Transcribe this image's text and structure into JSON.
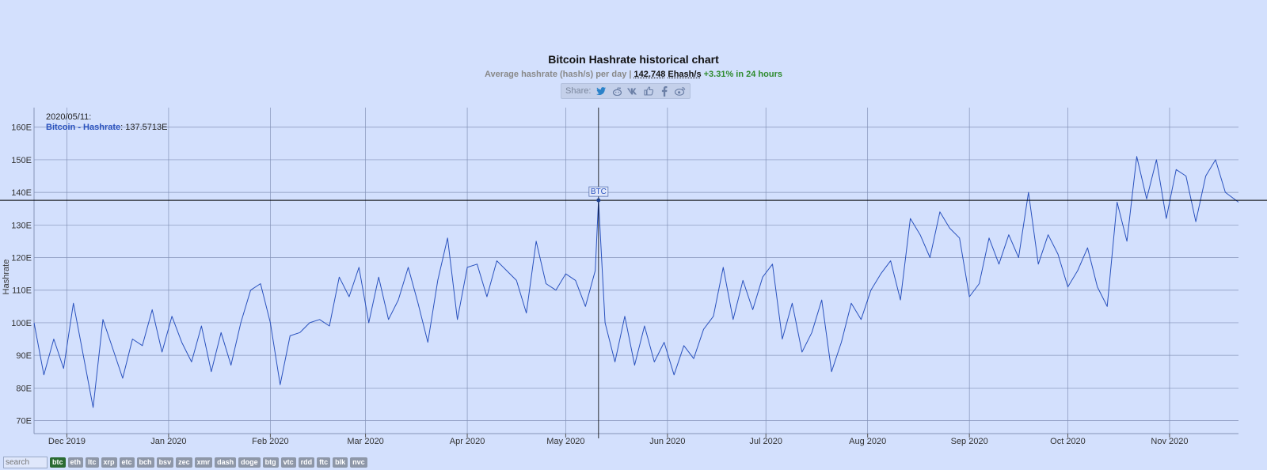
{
  "title": "Bitcoin Hashrate historical chart",
  "subtitle": {
    "prefix": "Average hashrate (hash/s) per day |",
    "value": "142.748",
    "unit": "Ehash/s",
    "change": "+3.31% in 24 hours"
  },
  "share": {
    "label": "Share:",
    "icons": [
      "twitter-icon",
      "reddit-icon",
      "vk-icon",
      "like-icon",
      "facebook-icon",
      "weibo-icon"
    ]
  },
  "tooltip": {
    "date": "2020/05/11:",
    "series": "Bitcoin - Hashrate",
    "value": ": 137.5713E"
  },
  "marker_label": "BTC",
  "search": {
    "placeholder": "search"
  },
  "coins": [
    "btc",
    "eth",
    "ltc",
    "xrp",
    "etc",
    "bch",
    "bsv",
    "zec",
    "xmr",
    "dash",
    "doge",
    "btg",
    "vtc",
    "rdd",
    "ftc",
    "blk",
    "nvc"
  ],
  "active_coin": "btc",
  "colors": {
    "background": "#d3e0fd",
    "line": "#2a52be",
    "grid": "#8493b8",
    "crosshair": "#000000"
  },
  "chart_data": {
    "type": "line",
    "title": "Bitcoin Hashrate historical chart",
    "ylabel": "Hashrate",
    "ylim": [
      66,
      166
    ],
    "yticks": [
      70,
      80,
      90,
      100,
      110,
      120,
      130,
      140,
      150,
      160
    ],
    "ytick_labels": [
      "70E",
      "80E",
      "90E",
      "100E",
      "110E",
      "120E",
      "130E",
      "140E",
      "150E",
      "160E"
    ],
    "xlim": [
      "2019-11-21",
      "2020-11-22"
    ],
    "xticks": [
      "2019-12-01",
      "2020-01-01",
      "2020-02-01",
      "2020-03-01",
      "2020-04-01",
      "2020-05-01",
      "2020-06-01",
      "2020-07-01",
      "2020-08-01",
      "2020-09-01",
      "2020-10-01",
      "2020-11-01"
    ],
    "xtick_labels": [
      "Dec 2019",
      "Jan 2020",
      "Feb 2020",
      "Mar 2020",
      "Apr 2020",
      "May 2020",
      "Jun 2020",
      "Jul 2020",
      "Aug 2020",
      "Sep 2020",
      "Oct 2020",
      "Nov 2020"
    ],
    "crosshair": {
      "x": "2020-05-11",
      "y": 137.5713
    },
    "grid": true,
    "series": [
      {
        "name": "Bitcoin - Hashrate",
        "points": [
          [
            "2019-11-21",
            100
          ],
          [
            "2019-11-24",
            84
          ],
          [
            "2019-11-27",
            95
          ],
          [
            "2019-11-30",
            86
          ],
          [
            "2019-12-03",
            106
          ],
          [
            "2019-12-06",
            90
          ],
          [
            "2019-12-09",
            74
          ],
          [
            "2019-12-12",
            101
          ],
          [
            "2019-12-15",
            92
          ],
          [
            "2019-12-18",
            83
          ],
          [
            "2019-12-21",
            95
          ],
          [
            "2019-12-24",
            93
          ],
          [
            "2019-12-27",
            104
          ],
          [
            "2019-12-30",
            91
          ],
          [
            "2020-01-02",
            102
          ],
          [
            "2020-01-05",
            94
          ],
          [
            "2020-01-08",
            88
          ],
          [
            "2020-01-11",
            99
          ],
          [
            "2020-01-14",
            85
          ],
          [
            "2020-01-17",
            97
          ],
          [
            "2020-01-20",
            87
          ],
          [
            "2020-01-23",
            100
          ],
          [
            "2020-01-26",
            110
          ],
          [
            "2020-01-29",
            112
          ],
          [
            "2020-02-01",
            100
          ],
          [
            "2020-02-04",
            81
          ],
          [
            "2020-02-07",
            96
          ],
          [
            "2020-02-10",
            97
          ],
          [
            "2020-02-13",
            100
          ],
          [
            "2020-02-16",
            101
          ],
          [
            "2020-02-19",
            99
          ],
          [
            "2020-02-22",
            114
          ],
          [
            "2020-02-25",
            108
          ],
          [
            "2020-02-28",
            117
          ],
          [
            "2020-03-02",
            100
          ],
          [
            "2020-03-05",
            114
          ],
          [
            "2020-03-08",
            101
          ],
          [
            "2020-03-11",
            107
          ],
          [
            "2020-03-14",
            117
          ],
          [
            "2020-03-17",
            106
          ],
          [
            "2020-03-20",
            94
          ],
          [
            "2020-03-23",
            113
          ],
          [
            "2020-03-26",
            126
          ],
          [
            "2020-03-29",
            101
          ],
          [
            "2020-04-01",
            117
          ],
          [
            "2020-04-04",
            118
          ],
          [
            "2020-04-07",
            108
          ],
          [
            "2020-04-10",
            119
          ],
          [
            "2020-04-13",
            116
          ],
          [
            "2020-04-16",
            113
          ],
          [
            "2020-04-19",
            103
          ],
          [
            "2020-04-22",
            125
          ],
          [
            "2020-04-25",
            112
          ],
          [
            "2020-04-28",
            110
          ],
          [
            "2020-05-01",
            115
          ],
          [
            "2020-05-04",
            113
          ],
          [
            "2020-05-07",
            105
          ],
          [
            "2020-05-10",
            116
          ],
          [
            "2020-05-11",
            137.5713
          ],
          [
            "2020-05-13",
            100
          ],
          [
            "2020-05-16",
            88
          ],
          [
            "2020-05-19",
            102
          ],
          [
            "2020-05-22",
            87
          ],
          [
            "2020-05-25",
            99
          ],
          [
            "2020-05-28",
            88
          ],
          [
            "2020-05-31",
            94
          ],
          [
            "2020-06-03",
            84
          ],
          [
            "2020-06-06",
            93
          ],
          [
            "2020-06-09",
            89
          ],
          [
            "2020-06-12",
            98
          ],
          [
            "2020-06-15",
            102
          ],
          [
            "2020-06-18",
            117
          ],
          [
            "2020-06-21",
            101
          ],
          [
            "2020-06-24",
            113
          ],
          [
            "2020-06-27",
            104
          ],
          [
            "2020-06-30",
            114
          ],
          [
            "2020-07-03",
            118
          ],
          [
            "2020-07-06",
            95
          ],
          [
            "2020-07-09",
            106
          ],
          [
            "2020-07-12",
            91
          ],
          [
            "2020-07-15",
            97
          ],
          [
            "2020-07-18",
            107
          ],
          [
            "2020-07-21",
            85
          ],
          [
            "2020-07-24",
            94
          ],
          [
            "2020-07-27",
            106
          ],
          [
            "2020-07-30",
            101
          ],
          [
            "2020-08-02",
            110
          ],
          [
            "2020-08-05",
            115
          ],
          [
            "2020-08-08",
            119
          ],
          [
            "2020-08-11",
            107
          ],
          [
            "2020-08-14",
            132
          ],
          [
            "2020-08-17",
            127
          ],
          [
            "2020-08-20",
            120
          ],
          [
            "2020-08-23",
            134
          ],
          [
            "2020-08-26",
            129
          ],
          [
            "2020-08-29",
            126
          ],
          [
            "2020-09-01",
            108
          ],
          [
            "2020-09-04",
            112
          ],
          [
            "2020-09-07",
            126
          ],
          [
            "2020-09-10",
            118
          ],
          [
            "2020-09-13",
            127
          ],
          [
            "2020-09-16",
            120
          ],
          [
            "2020-09-19",
            140
          ],
          [
            "2020-09-22",
            118
          ],
          [
            "2020-09-25",
            127
          ],
          [
            "2020-09-28",
            121
          ],
          [
            "2020-10-01",
            111
          ],
          [
            "2020-10-04",
            116
          ],
          [
            "2020-10-07",
            123
          ],
          [
            "2020-10-10",
            111
          ],
          [
            "2020-10-13",
            105
          ],
          [
            "2020-10-16",
            137
          ],
          [
            "2020-10-19",
            125
          ],
          [
            "2020-10-22",
            151
          ],
          [
            "2020-10-25",
            138
          ],
          [
            "2020-10-28",
            150
          ],
          [
            "2020-10-31",
            132
          ],
          [
            "2020-11-03",
            147
          ],
          [
            "2020-11-06",
            145
          ],
          [
            "2020-11-09",
            131
          ],
          [
            "2020-11-12",
            145
          ],
          [
            "2020-11-15",
            150
          ],
          [
            "2020-11-18",
            140
          ],
          [
            "2020-11-22",
            137
          ]
        ]
      }
    ]
  }
}
